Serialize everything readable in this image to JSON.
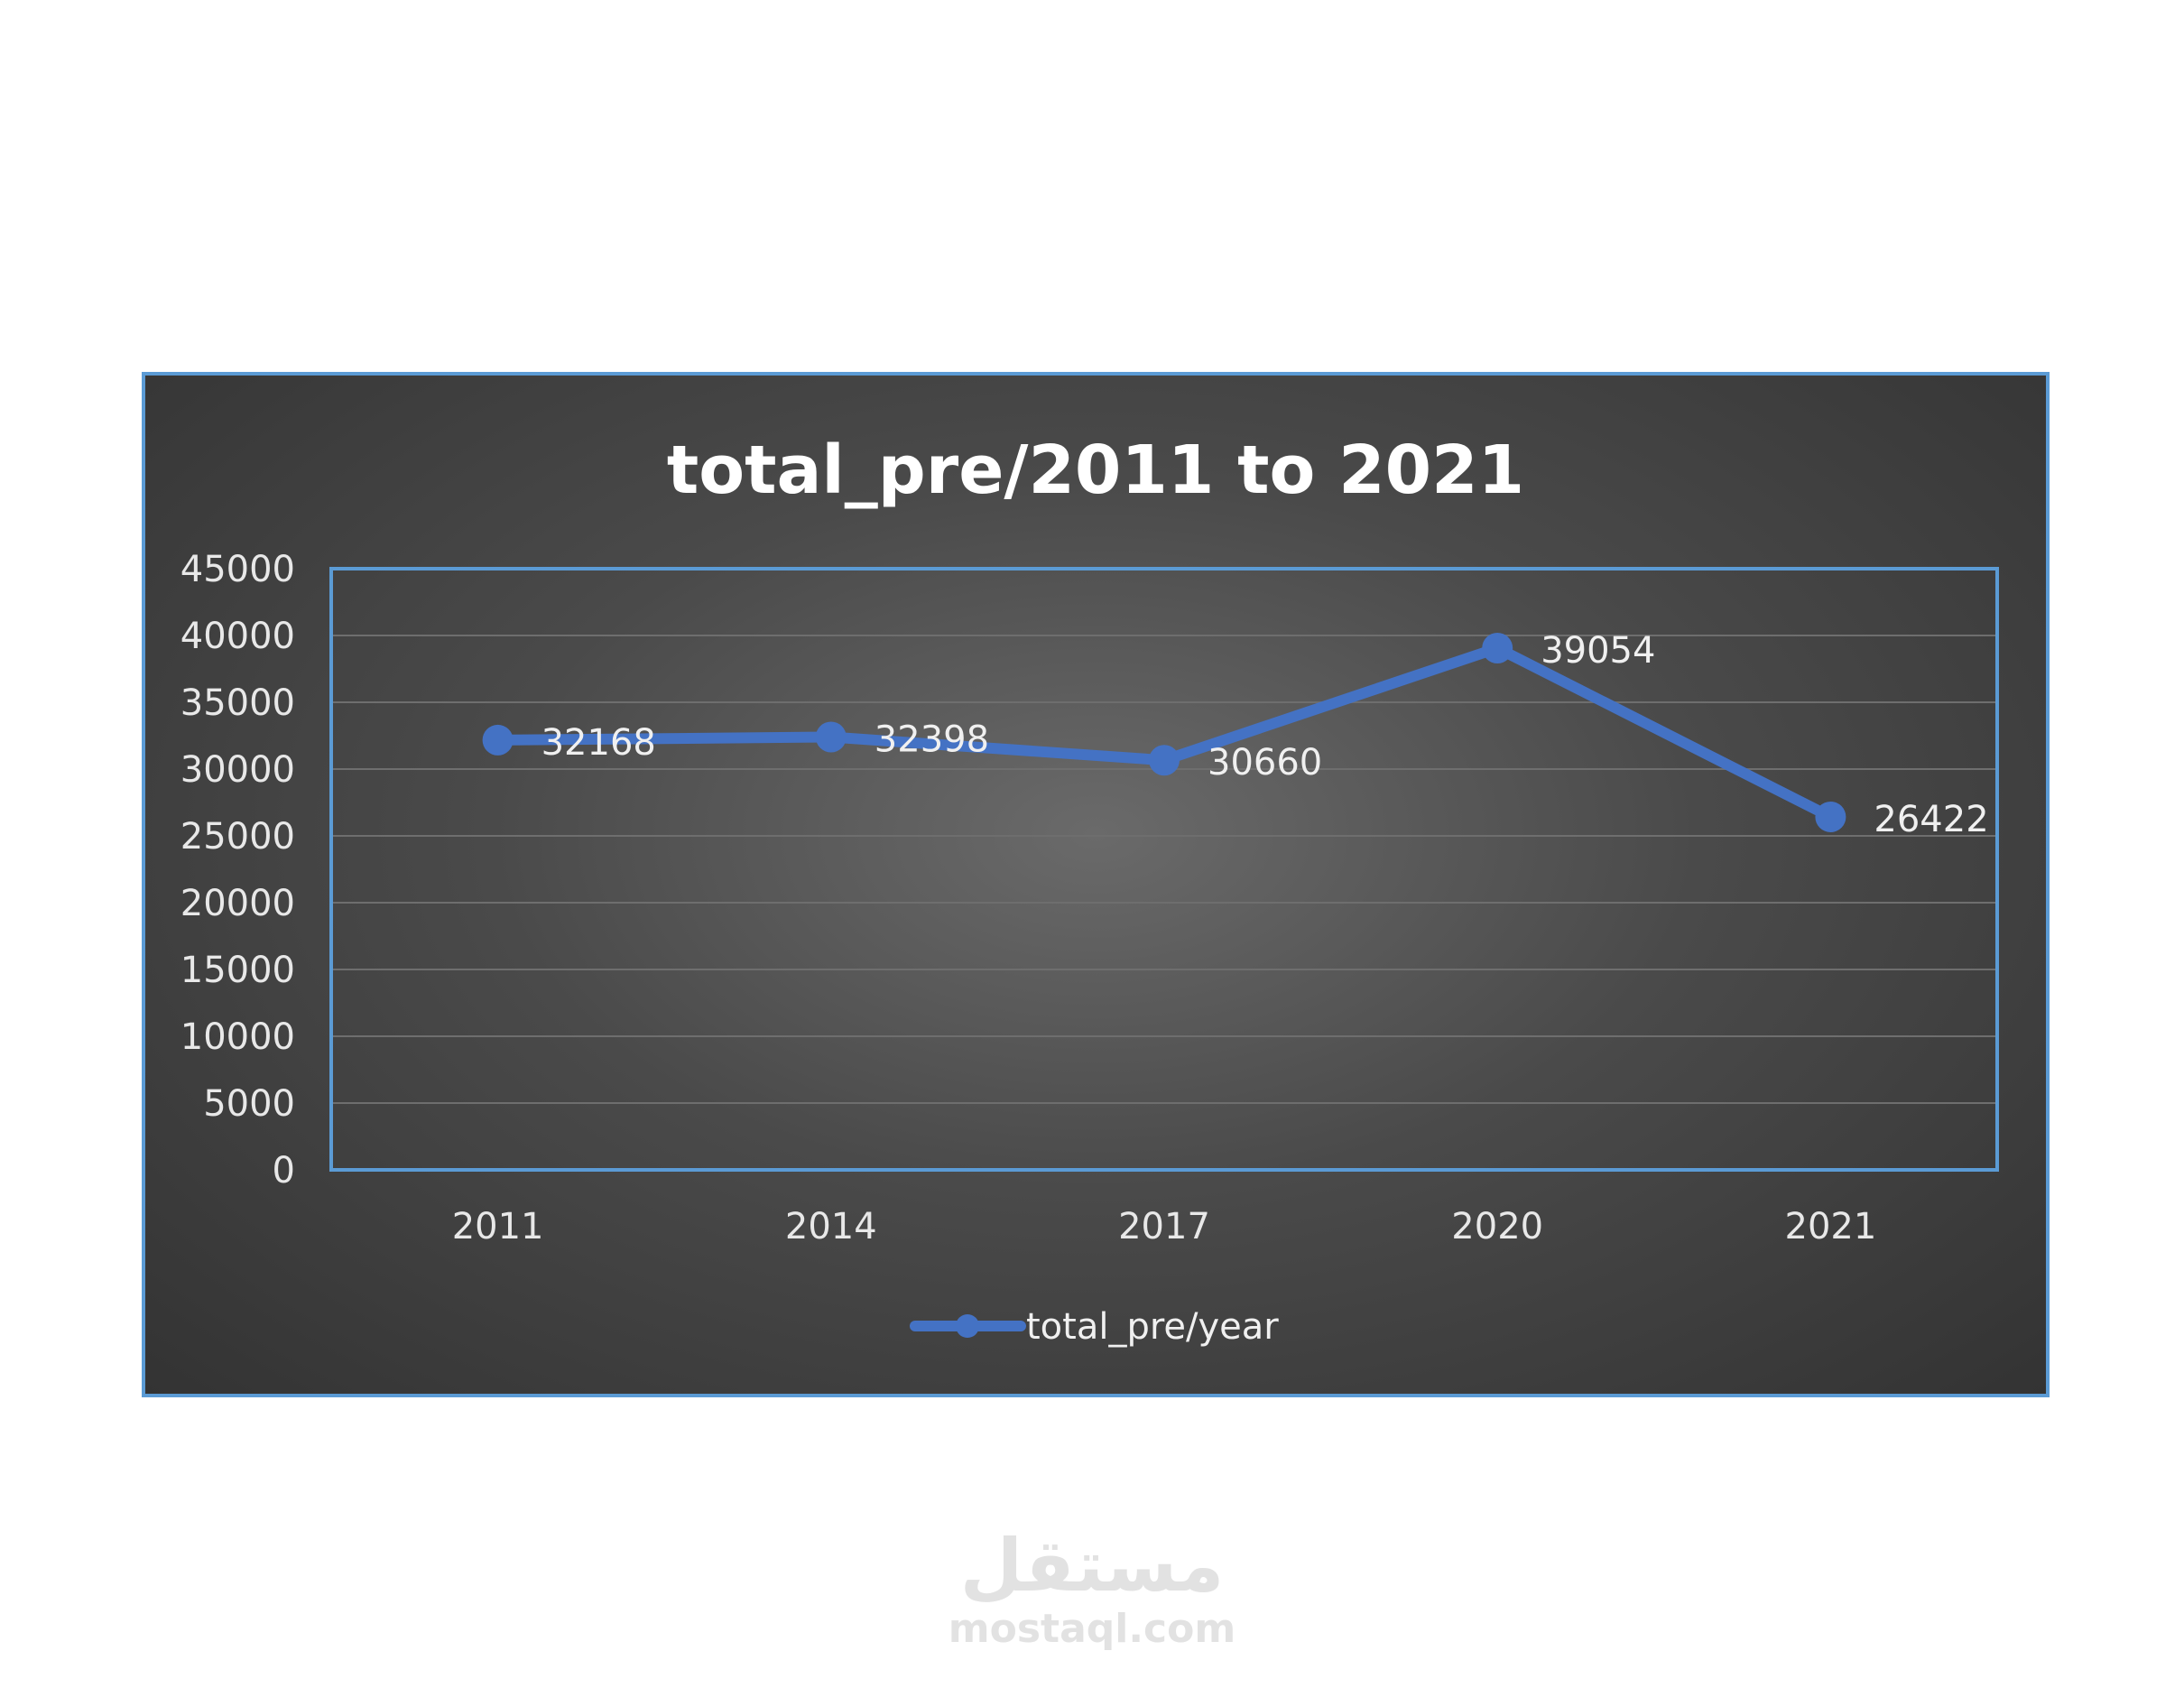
{
  "chart_data": {
    "type": "line",
    "title": "total_pre/2011 to 2021",
    "categories": [
      "2011",
      "2014",
      "2017",
      "2020",
      "2021"
    ],
    "series": [
      {
        "name": "total_pre/year",
        "values": [
          32168,
          32398,
          30660,
          39054,
          26422
        ]
      }
    ],
    "ylim": [
      0,
      45000
    ],
    "yticks": [
      "0",
      "5000",
      "10000",
      "15000",
      "20000",
      "25000",
      "30000",
      "35000",
      "40000",
      "45000"
    ],
    "grid": true,
    "legend_position": "bottom",
    "data_labels": [
      "32168",
      "32398",
      "30660",
      "39054",
      "26422"
    ],
    "colors": {
      "series": "#4472c4",
      "plot_border": "#5b9bd5",
      "gridline": "#6e6e6e"
    }
  },
  "watermark": {
    "arabic": "مستقل",
    "latin": "mostaql.com"
  }
}
